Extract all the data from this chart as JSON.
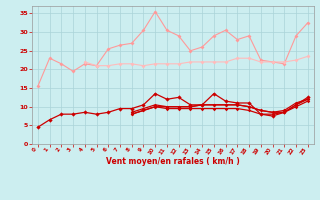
{
  "x": [
    0,
    1,
    2,
    3,
    4,
    5,
    6,
    7,
    8,
    9,
    10,
    11,
    12,
    13,
    14,
    15,
    16,
    17,
    18,
    19,
    20,
    21,
    22,
    23
  ],
  "line1": [
    15.5,
    23,
    21.5,
    19.5,
    21.5,
    21,
    25.5,
    26.5,
    27,
    30.5,
    35.5,
    30.5,
    29,
    25,
    26,
    29,
    30.5,
    28,
    29,
    22.5,
    22,
    21.5,
    29,
    32.5
  ],
  "line2": [
    null,
    null,
    null,
    null,
    22,
    21,
    21,
    21.5,
    21.5,
    21,
    21.5,
    21.5,
    21.5,
    22,
    22,
    22,
    22,
    23,
    23,
    22,
    22,
    22,
    22.5,
    23.5
  ],
  "line3": [
    4.5,
    6.5,
    8,
    8,
    8.5,
    8,
    8.5,
    9.5,
    9.5,
    10.5,
    13.5,
    12,
    12.5,
    10.5,
    10.5,
    13.5,
    11.5,
    11,
    11,
    8,
    7.5,
    8.5,
    10.5,
    12.5
  ],
  "line4": [
    null,
    null,
    null,
    null,
    null,
    null,
    null,
    null,
    8,
    9,
    10,
    10,
    10,
    10,
    10.5,
    10.5,
    10.5,
    10.5,
    10,
    9,
    8.5,
    9,
    11,
    12
  ],
  "line5": [
    null,
    null,
    null,
    null,
    null,
    null,
    null,
    null,
    8,
    9,
    10,
    9.5,
    9.5,
    9.5,
    9.5,
    9.5,
    9.5,
    9.5,
    9,
    8,
    8,
    8.5,
    10,
    11.5
  ],
  "line6": [
    null,
    null,
    null,
    null,
    null,
    null,
    null,
    null,
    8.5,
    9.5,
    10.5,
    10,
    10,
    10,
    10.5,
    10.5,
    10.5,
    10.5,
    10,
    9,
    8.5,
    8.5,
    10.5,
    12
  ],
  "bg_color": "#cceef0",
  "grid_color": "#aad4d8",
  "line1_color": "#ff9999",
  "line2_color": "#ffbbbb",
  "line3_color": "#cc0000",
  "line4_color": "#cc0000",
  "line5_color": "#cc0000",
  "line6_color": "#cc0000",
  "xlabel": "Vent moyen/en rafales ( km/h )",
  "ylim": [
    0,
    37
  ],
  "xlim": [
    -0.5,
    23.5
  ],
  "yticks": [
    0,
    5,
    10,
    15,
    20,
    25,
    30,
    35
  ],
  "xticks": [
    0,
    1,
    2,
    3,
    4,
    5,
    6,
    7,
    8,
    9,
    10,
    11,
    12,
    13,
    14,
    15,
    16,
    17,
    18,
    19,
    20,
    21,
    22,
    23
  ]
}
